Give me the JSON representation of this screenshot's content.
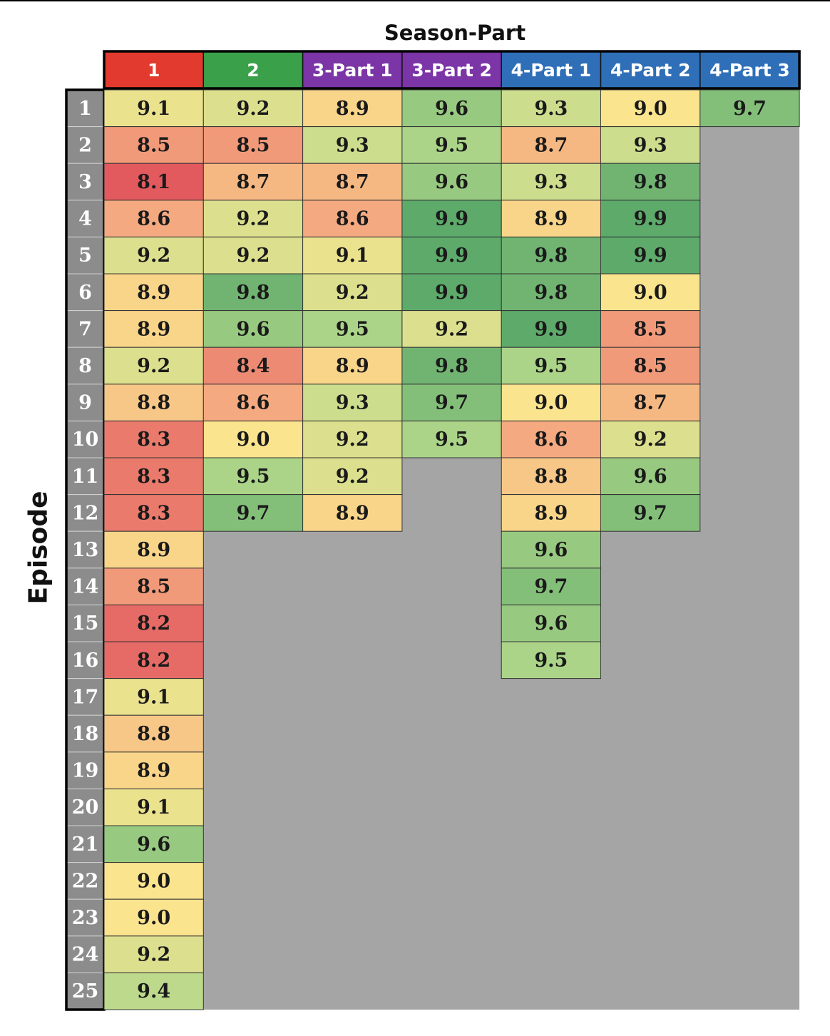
{
  "chart_data": {
    "type": "heatmap",
    "xlabel": "Season-Part",
    "ylabel": "Episode",
    "columns": [
      "1",
      "2",
      "3-Part 1",
      "3-Part 2",
      "4-Part 1",
      "4-Part 2",
      "4-Part 3"
    ],
    "rows": [
      "1",
      "2",
      "3",
      "4",
      "5",
      "6",
      "7",
      "8",
      "9",
      "10",
      "11",
      "12",
      "13",
      "14",
      "15",
      "16",
      "17",
      "18",
      "19",
      "20",
      "21",
      "22",
      "23",
      "24",
      "25"
    ],
    "values": [
      [
        9.1,
        8.5,
        8.1,
        8.6,
        9.2,
        8.9,
        8.9,
        9.2,
        8.8,
        8.3,
        8.3,
        8.3,
        8.9,
        8.5,
        8.2,
        8.2,
        9.1,
        8.8,
        8.9,
        9.1,
        9.6,
        9.0,
        9.0,
        9.2,
        9.4
      ],
      [
        9.2,
        8.5,
        8.7,
        9.2,
        9.2,
        9.8,
        9.6,
        8.4,
        8.6,
        9.0,
        9.5,
        9.7
      ],
      [
        8.9,
        9.3,
        8.7,
        8.6,
        9.1,
        9.2,
        9.5,
        8.9,
        9.3,
        9.2,
        9.2,
        8.9
      ],
      [
        9.6,
        9.5,
        9.6,
        9.9,
        9.9,
        9.9,
        9.2,
        9.8,
        9.7,
        9.5
      ],
      [
        9.3,
        8.7,
        9.3,
        8.9,
        9.8,
        9.8,
        9.9,
        9.5,
        9.0,
        8.6,
        8.8,
        8.9,
        9.6,
        9.7,
        9.6,
        9.5
      ],
      [
        9.0,
        9.3,
        9.8,
        9.9,
        9.9,
        9.0,
        8.5,
        8.5,
        8.7,
        9.2,
        9.6,
        9.7
      ],
      [
        9.7
      ]
    ],
    "value_range": [
      8.1,
      9.9
    ],
    "header_colors": [
      "#e23a2e",
      "#3aa04a",
      "#7b35a6",
      "#7b35a6",
      "#2f6fb8",
      "#2f6fb8",
      "#2f6fb8"
    ],
    "color_scale": [
      "#e25a5e",
      "#f3a27e",
      "#fbe48e",
      "#b5d98c",
      "#5daa6b"
    ],
    "empty_color": "#a5a5a5",
    "episode_cell_color": "#8c8c8c"
  }
}
